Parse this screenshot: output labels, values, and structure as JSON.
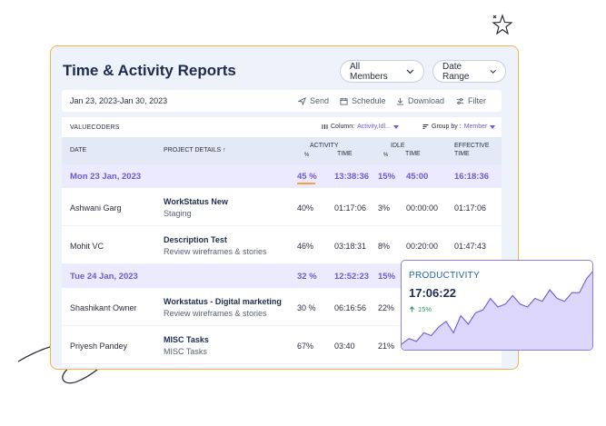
{
  "report": {
    "title": "Time & Activity Reports",
    "members_filter": "All Members",
    "date_range_filter": "Date Range",
    "date_range_value": "Jan 23, 2023-Jan 30, 2023",
    "actions": {
      "send": "Send",
      "schedule": "Schedule",
      "download": "Download",
      "filter": "Filter"
    },
    "org": "VALUECODERS",
    "column_label": "Column:",
    "column_value": "Activity,Idl...",
    "group_label": "Group by :",
    "group_value": "Member"
  },
  "table": {
    "headers": {
      "date": "DATE",
      "project": "PROJECT DETAILS ↑",
      "activity": "ACTIVITY",
      "activity_pct": "%",
      "activity_time": "TIME",
      "idle": "IDLE",
      "idle_pct": "%",
      "idle_time": "TIME",
      "effective": "EFFECTIVE",
      "effective_time": "TIME"
    },
    "groups": [
      {
        "date": "Mon 23 Jan, 2023",
        "activity_pct": "45 %",
        "activity_time": "13:38:36",
        "idle_pct": "15%",
        "idle_time": "45:00",
        "effective_time": "16:18:36",
        "rows": [
          {
            "member": "Ashwani Garg",
            "project": "WorkStatus New",
            "subproject": "Staging",
            "activity_pct": "40%",
            "activity_time": "01:17:06",
            "idle_pct": "3%",
            "idle_time": "00:00:00",
            "effective_time": "01:17:06"
          },
          {
            "member": "Mohit VC",
            "project": "Description Test",
            "subproject": "Review wireframes & stories",
            "activity_pct": "46%",
            "activity_time": "03:18:31",
            "idle_pct": "8%",
            "idle_time": "00:20:00",
            "effective_time": "01:47:43"
          }
        ]
      },
      {
        "date": "Tue 24 Jan, 2023",
        "activity_pct": "32 %",
        "activity_time": "12:52:23",
        "idle_pct": "15%",
        "rows": [
          {
            "member": "Shashikant Owner",
            "project": "Workstatus - Digital marketing",
            "subproject": "Review wireframes & stories",
            "activity_pct": "30 %",
            "activity_time": "06:16:56",
            "idle_pct": "22%"
          },
          {
            "member": "Priyesh Pandey",
            "project": "MISC Tasks",
            "subproject": "MISC Tasks",
            "activity_pct": "67%",
            "activity_time": "03:40",
            "idle_pct": "21%"
          }
        ]
      }
    ]
  },
  "productivity": {
    "title": "PRODUCTIVITY",
    "value": "17:06:22",
    "change": "15%",
    "trend": [
      1,
      3,
      2,
      5,
      4,
      7,
      9,
      5,
      11,
      8,
      12,
      13,
      17,
      14,
      15,
      18,
      15,
      14,
      17,
      16,
      20,
      17,
      16,
      19,
      19,
      24,
      27
    ]
  },
  "colors": {
    "accent": "#6b5bd6",
    "border": "#f2b54a",
    "positive": "#1e9e5a"
  }
}
